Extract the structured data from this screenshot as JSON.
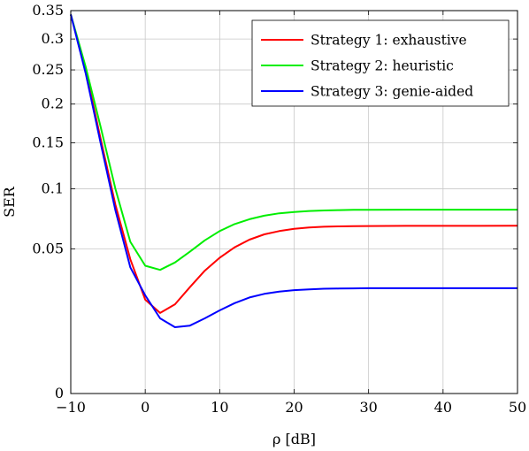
{
  "chart_data": {
    "type": "line",
    "xlabel": "ρ [dB]",
    "ylabel": "SER",
    "xlim": [
      -10,
      50
    ],
    "ylim": [
      0,
      0.35
    ],
    "y_scale": "sqrt",
    "grid": true,
    "legend_position": "top-right",
    "x_ticks": [
      -10,
      0,
      10,
      20,
      30,
      40,
      50
    ],
    "x_tick_labels": [
      "−10",
      "0",
      "10",
      "20",
      "30",
      "40",
      "50"
    ],
    "y_ticks": [
      0,
      0.05,
      0.1,
      0.15,
      0.2,
      0.25,
      0.3,
      0.35
    ],
    "y_tick_labels": [
      "0",
      "0.05",
      "0.1",
      "0.15",
      "0.2",
      "0.25",
      "0.3",
      "0.35"
    ],
    "x": [
      -10,
      -8,
      -6,
      -4,
      -2,
      0,
      2,
      4,
      6,
      8,
      10,
      12,
      14,
      16,
      18,
      20,
      22,
      24,
      26,
      28,
      30,
      35,
      40,
      45,
      50
    ],
    "series": [
      {
        "name": "Strategy 1: exhaustive",
        "color": "#ff0000",
        "values": [
          0.343,
          0.25,
          0.155,
          0.085,
          0.043,
          0.021,
          0.0155,
          0.019,
          0.027,
          0.036,
          0.044,
          0.051,
          0.0565,
          0.0605,
          0.063,
          0.0648,
          0.0658,
          0.0664,
          0.0667,
          0.0669,
          0.067,
          0.0671,
          0.0671,
          0.0671,
          0.0672
        ]
      },
      {
        "name": "Strategy 2: heuristic",
        "color": "#00ee00",
        "values": [
          0.343,
          0.255,
          0.17,
          0.1,
          0.055,
          0.039,
          0.0365,
          0.041,
          0.048,
          0.056,
          0.063,
          0.0685,
          0.0725,
          0.0755,
          0.0775,
          0.0787,
          0.0795,
          0.08,
          0.0803,
          0.0805,
          0.0806,
          0.0807,
          0.0807,
          0.0807,
          0.0807
        ]
      },
      {
        "name": "Strategy 3: genie-aided",
        "color": "#0000ff",
        "values": [
          0.343,
          0.245,
          0.15,
          0.08,
          0.038,
          0.023,
          0.0135,
          0.0105,
          0.011,
          0.0135,
          0.0165,
          0.0195,
          0.022,
          0.0237,
          0.0248,
          0.0255,
          0.0259,
          0.0262,
          0.0263,
          0.0264,
          0.0265,
          0.0265,
          0.0265,
          0.0265,
          0.0265
        ]
      }
    ]
  }
}
